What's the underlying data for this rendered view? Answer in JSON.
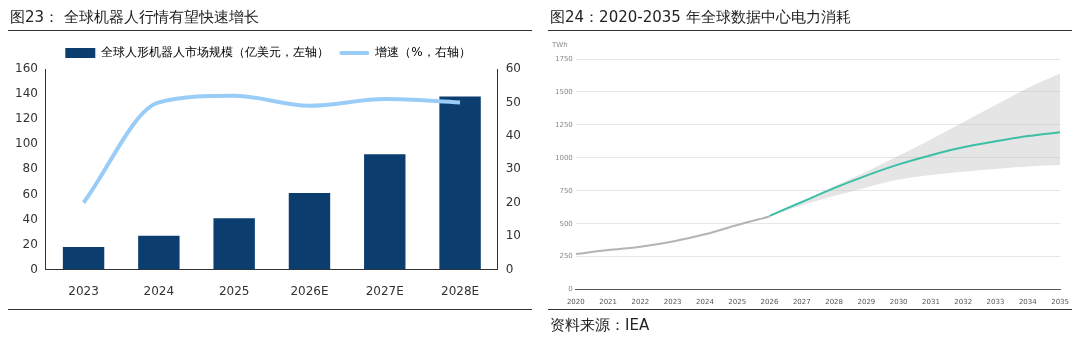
{
  "chart_data": [
    {
      "type": "bar",
      "title": "图23：  全球机器人行情有望快速增长",
      "categories": [
        "2023",
        "2024",
        "2025",
        "2026E",
        "2027E",
        "2028E"
      ],
      "series": [
        {
          "name": "全球人形机器人市场规模（亿美元，左轴）",
          "type": "bar",
          "color": "#0b3d6f",
          "values": [
            18,
            27,
            41,
            61,
            92,
            138
          ]
        },
        {
          "name": "增速（%，右轴）",
          "type": "line",
          "axis": "y2",
          "color": "#99cdf7",
          "values": [
            20,
            50,
            52,
            49,
            51,
            50
          ]
        }
      ],
      "ylim": [
        0,
        160
      ],
      "yticks": [
        0,
        20,
        40,
        60,
        80,
        100,
        120,
        140,
        160
      ],
      "y2lim": [
        0,
        60
      ],
      "y2ticks": [
        0,
        10,
        20,
        30,
        40,
        50,
        60
      ],
      "grid": false,
      "legend": "top",
      "marker": "none"
    },
    {
      "type": "line",
      "title": "图24：2020-2035 年全球数据中心电力消耗",
      "ylabel": "TWh",
      "series": [
        {
          "color": "#b4b4b4",
          "x": [
            2020,
            2021,
            2022,
            2023,
            2024,
            2025,
            2026
          ],
          "values": [
            270,
            300,
            325,
            365,
            420,
            490,
            555
          ]
        },
        {
          "color": "#3dbfa6",
          "x": [
            2026,
            2027,
            2028,
            2029,
            2030,
            2031,
            2032,
            2033,
            2034,
            2035
          ],
          "values": [
            560,
            665,
            770,
            865,
            950,
            1020,
            1080,
            1125,
            1165,
            1195
          ],
          "lower": [
            550,
            640,
            710,
            775,
            835,
            870,
            895,
            915,
            935,
            945
          ],
          "upper": [
            555,
            670,
            785,
            895,
            1015,
            1140,
            1270,
            1400,
            1530,
            1640
          ]
        }
      ],
      "xlim": [
        2020,
        2035
      ],
      "xticks": [
        2020,
        2021,
        2022,
        2023,
        2024,
        2025,
        2026,
        2027,
        2028,
        2029,
        2030,
        2031,
        2032,
        2033,
        2034,
        2035
      ],
      "ylim": [
        0,
        1750
      ],
      "yticks": [
        0,
        250,
        500,
        750,
        1000,
        1250,
        1500,
        1750
      ],
      "grid": "y",
      "legend": false,
      "marker": "none",
      "annotations": [
        "资料来源：IEA"
      ]
    }
  ]
}
